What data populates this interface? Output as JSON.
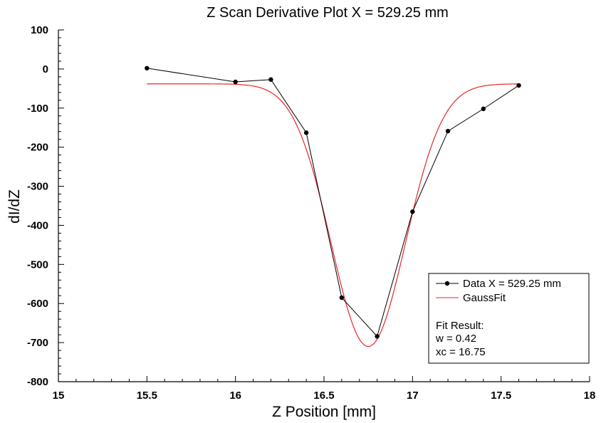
{
  "chart_data": {
    "type": "line",
    "title": "Z Scan Derivative Plot X = 529.25 mm",
    "xlabel": "Z Position [mm]",
    "ylabel": "dI/dZ",
    "xlim": [
      15,
      18
    ],
    "ylim": [
      -800,
      100
    ],
    "x_ticks": [
      "15",
      "15.5",
      "16",
      "16.5",
      "17",
      "17.5",
      "18"
    ],
    "y_ticks": [
      "100",
      "0",
      "-100",
      "-200",
      "-300",
      "-400",
      "-500",
      "-600",
      "-700",
      "-800"
    ],
    "grid": false,
    "legend_position": "bottom-right",
    "series": [
      {
        "name": "Data X = 529.25 mm",
        "style": "line-markers",
        "color": "#000000",
        "x": [
          15.5,
          16.0,
          16.2,
          16.4,
          16.6,
          16.8,
          17.0,
          17.2,
          17.4,
          17.6
        ],
        "y": [
          2,
          -33,
          -27,
          -163,
          -585,
          -684,
          -365,
          -159,
          -102,
          -42
        ]
      },
      {
        "name": "GaussFit",
        "style": "line",
        "color": "#e8262a",
        "fit": {
          "function": "gaussian",
          "y0": -38,
          "A": -672,
          "xc": 16.75,
          "w": 0.42,
          "x_start": 15.5,
          "x_end": 17.6
        }
      }
    ],
    "annotation": {
      "heading": "Fit Result:",
      "w_text": "w = 0.42",
      "xc_text": "xc = 16.75"
    }
  }
}
